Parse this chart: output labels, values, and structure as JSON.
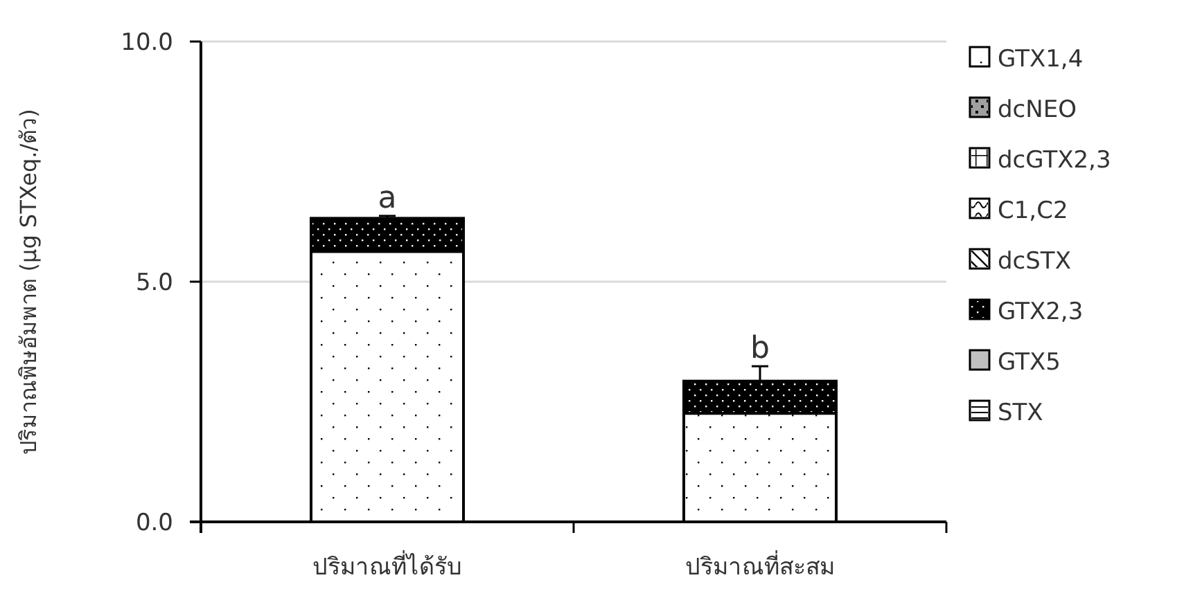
{
  "chart_data": {
    "type": "bar",
    "stacked": true,
    "ylabel": "ปริมาณพิษอัมพาต (µg STXeq./ตัว)",
    "categories": [
      "ปริมาณที่ได้รับ",
      "ปริมาณที่สะสม"
    ],
    "series": [
      {
        "name": "GTX1,4",
        "color": "#ffffff",
        "values": [
          5.63,
          2.26
        ]
      },
      {
        "name": "dcNEO",
        "color": "#a0a0a0",
        "values": [
          0,
          0
        ]
      },
      {
        "name": "dcGTX2,3",
        "color": "#ffffff",
        "values": [
          0,
          0
        ]
      },
      {
        "name": "C1,C2",
        "color": "#ffffff",
        "values": [
          0,
          0
        ]
      },
      {
        "name": "dcSTX",
        "color": "#ffffff",
        "values": [
          0,
          0
        ]
      },
      {
        "name": "GTX2,3",
        "color": "#000000",
        "values": [
          0.69,
          0.67
        ],
        "errors": [
          0.05,
          0.31
        ]
      },
      {
        "name": "GTX5",
        "color": "#c0c0c0",
        "values": [
          0,
          0
        ]
      },
      {
        "name": "STX",
        "color": "#ffffff",
        "values": [
          0,
          0
        ]
      }
    ],
    "ylim": [
      0,
      10
    ],
    "yticks": [
      {
        "value": 0,
        "label": "0.0"
      },
      {
        "value": 5,
        "label": "5.0"
      },
      {
        "value": 10,
        "label": "10.0"
      }
    ],
    "grid": "y",
    "legend": "right",
    "annotations": [
      {
        "text": "a",
        "x": "ปริมาณที่ได้รับ",
        "y": 6.37
      },
      {
        "text": "b",
        "x": "ปริมาณที่สะสม",
        "y": 3.24
      }
    ]
  }
}
